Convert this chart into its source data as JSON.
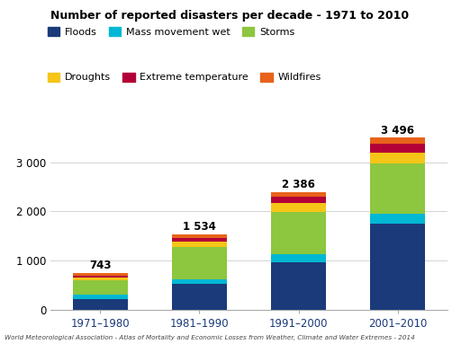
{
  "categories": [
    "1971–1980",
    "1981–1990",
    "1991–2000",
    "2001–2010"
  ],
  "totals_display": [
    "743",
    "1 534",
    "2 386",
    "3 496"
  ],
  "totals_raw": [
    743,
    1534,
    2386,
    3496
  ],
  "segments": {
    "Floods": [
      220,
      530,
      960,
      1750
    ],
    "Mass movement wet": [
      90,
      80,
      165,
      200
    ],
    "Storms": [
      280,
      670,
      860,
      1020
    ],
    "Droughts": [
      60,
      95,
      190,
      230
    ],
    "Extreme temperature": [
      45,
      80,
      115,
      180
    ],
    "Wildfires": [
      48,
      79,
      96,
      116
    ]
  },
  "colors": {
    "Floods": "#1a3a7a",
    "Mass movement wet": "#00b8d4",
    "Storms": "#8dc63f",
    "Droughts": "#f5c518",
    "Extreme temperature": "#b30038",
    "Wildfires": "#e8621a"
  },
  "segment_order": [
    "Floods",
    "Mass movement wet",
    "Storms",
    "Droughts",
    "Extreme temperature",
    "Wildfires"
  ],
  "legend_row1": [
    "Floods",
    "Mass movement wet",
    "Storms"
  ],
  "legend_row2": [
    "Droughts",
    "Extreme temperature",
    "Wildfires"
  ],
  "title": "Number of reported disasters per decade - 1971 to 2010",
  "yticks": [
    0,
    1000,
    2000,
    3000
  ],
  "ylim": [
    0,
    3850
  ],
  "footer": "World Meteorological Association - Atlas of Mortality and Economic Losses from Weather, Climate and Water Extremes - 2014",
  "bar_width": 0.55
}
